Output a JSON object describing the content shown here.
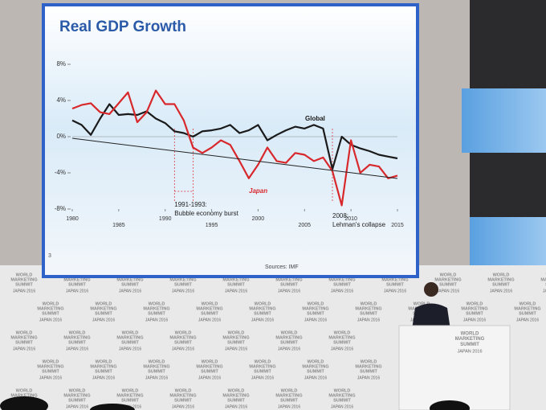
{
  "chart_data": {
    "type": "line",
    "title": "Real GDP Growth",
    "x": [
      1980,
      1981,
      1982,
      1983,
      1984,
      1985,
      1986,
      1987,
      1988,
      1989,
      1990,
      1991,
      1992,
      1993,
      1994,
      1995,
      1996,
      1997,
      1998,
      1999,
      2000,
      2001,
      2002,
      2003,
      2004,
      2005,
      2006,
      2007,
      2008,
      2009,
      2010,
      2011,
      2012,
      2013,
      2014,
      2015
    ],
    "series": [
      {
        "name": "Global",
        "color": "#1a1a1a",
        "values": [
          1.8,
          1.3,
          0.2,
          2.0,
          3.6,
          2.4,
          2.5,
          2.4,
          2.8,
          2.0,
          1.5,
          0.6,
          0.4,
          0.0,
          0.6,
          0.7,
          0.9,
          1.3,
          0.4,
          0.7,
          1.3,
          -0.4,
          0.2,
          0.7,
          1.1,
          0.9,
          1.3,
          0.9,
          -3.6,
          0.0,
          -0.9,
          -1.3,
          -1.6,
          -2.0,
          -2.2,
          -2.4
        ]
      },
      {
        "name": "Japan",
        "color": "#d8282c",
        "values": [
          3.1,
          3.5,
          3.7,
          2.7,
          2.5,
          3.7,
          4.9,
          1.6,
          2.7,
          5.1,
          3.6,
          3.6,
          1.8,
          -1.2,
          -1.8,
          -1.2,
          -0.4,
          -0.9,
          -2.7,
          -4.6,
          -3.1,
          -1.2,
          -2.7,
          -2.9,
          -1.8,
          -2.0,
          -2.7,
          -2.3,
          -3.8,
          -7.6,
          -0.4,
          -4.0,
          -3.1,
          -3.3,
          -4.6,
          -4.3
        ]
      }
    ],
    "xlim": [
      1980,
      2015
    ],
    "xticks": [
      1980,
      1985,
      1990,
      1995,
      2000,
      2005,
      2010,
      2015
    ],
    "ylim": [
      -8,
      8
    ],
    "yticks": [
      {
        "value": 8,
        "label": "8%"
      },
      {
        "value": 4,
        "label": "4%"
      },
      {
        "value": 0,
        "label": "0%"
      },
      {
        "value": -4,
        "label": "-4%"
      },
      {
        "value": -8,
        "label": "-8%"
      }
    ],
    "annotations": [
      {
        "lines": [
          "1991-1993:",
          "Bubble economy burst"
        ],
        "x": [
          1991,
          1993
        ]
      },
      {
        "lines": [
          "2008:",
          "Lehman's collapse"
        ],
        "x": [
          2008
        ]
      }
    ],
    "source": "Sources:  IMF",
    "slide_number": "3"
  },
  "backdrop": {
    "logo": [
      "WORLD",
      "MARKETING",
      "SUMMIT"
    ],
    "sub": "JAPAN 2016"
  }
}
